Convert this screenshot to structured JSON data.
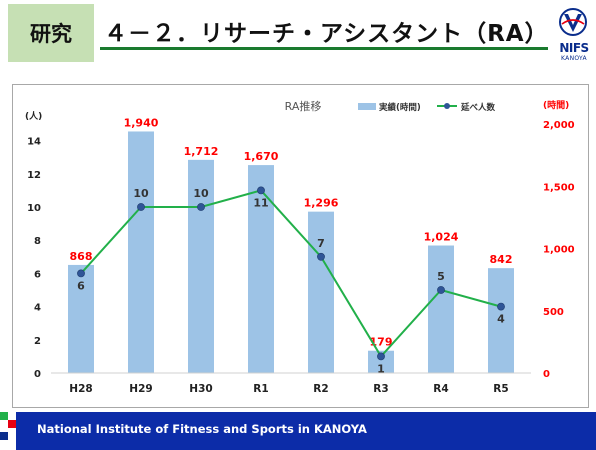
{
  "header": {
    "tag": "研究",
    "title": "４－２．リサーチ・アシスタント（RA）",
    "logo_text": "NIFS",
    "logo_sub": "KANOYA"
  },
  "footer": {
    "text": "National Institute of Fitness and Sports in KANOYA"
  },
  "colors": {
    "bar": "#9dc3e6",
    "line": "#22b04a",
    "marker": "#2f5597",
    "bar_label": "#ff0000",
    "footer": "#0c2ca8",
    "tag": "#c6e0b4"
  },
  "chart_data": {
    "type": "bar",
    "title": "RA推移",
    "categories": [
      "H28",
      "H29",
      "H30",
      "R1",
      "R2",
      "R3",
      "R4",
      "R5"
    ],
    "series": [
      {
        "name": "実績(時間)",
        "type": "bar",
        "axis": "right",
        "values": [
          868,
          1940,
          1712,
          1670,
          1296,
          179,
          1024,
          842
        ],
        "labels": [
          "868",
          "1,940",
          "1,712",
          "1,670",
          "1,296",
          "179",
          "1,024",
          "842"
        ]
      },
      {
        "name": "延べ人数",
        "type": "line",
        "axis": "left",
        "values": [
          6,
          10,
          10,
          11,
          7,
          1,
          5,
          4
        ],
        "labels": [
          "6",
          "10",
          "10",
          "11",
          "7",
          "1",
          "5",
          "4"
        ]
      }
    ],
    "y_left": {
      "unit": "(人)",
      "min": 0,
      "max": 15,
      "ticks": [
        0,
        2,
        4,
        6,
        8,
        10,
        12,
        14
      ]
    },
    "y_right": {
      "unit": "(時間)",
      "min": 0,
      "max": 2000,
      "ticks": [
        0,
        500,
        1000,
        1500,
        2000
      ],
      "tick_labels": [
        "0",
        "500",
        "1,000",
        "1,500",
        "2,000"
      ]
    },
    "legend": "top-right",
    "grid": false
  }
}
